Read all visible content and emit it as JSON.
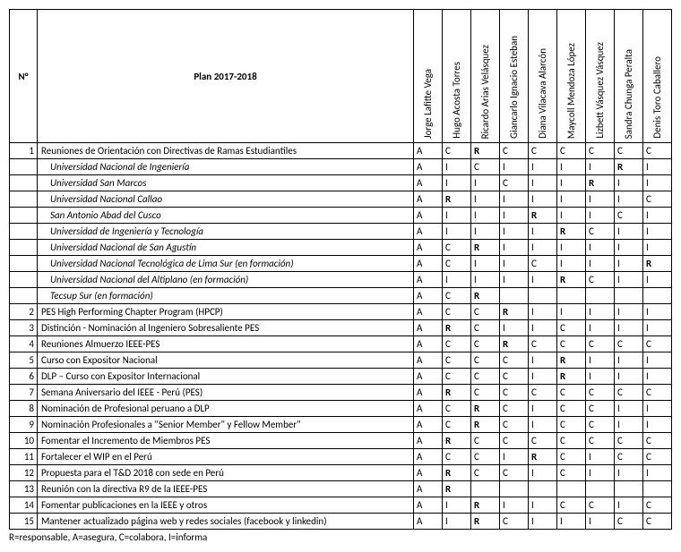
{
  "header": {
    "num_label": "N°",
    "plan_label": "Plan 2017-2018",
    "people": [
      "Jorge Lafitte Vega",
      "Hugo Acosta Torres",
      "Ricardo Arias Velásquez",
      "Giancarlo Ignacio Esteban",
      "Diana Vilacava Alarcón",
      "Maycoll Mendoza López",
      "Lizbett Vásquez Vásquez",
      "Sandra Chunga Peralta",
      "Denis Toro Caballero"
    ]
  },
  "rows": [
    {
      "num": "1",
      "plan": "Reuniones de Orientación con Directivas de Ramas Estudiantiles",
      "indent": false,
      "cells": [
        "A",
        "C",
        "R",
        "C",
        "C",
        "C",
        "C",
        "C",
        "C"
      ],
      "bold": [
        false,
        false,
        true,
        false,
        false,
        false,
        false,
        false,
        false
      ]
    },
    {
      "num": "",
      "plan": "Universidad Nacional de Ingeniería",
      "indent": true,
      "cells": [
        "A",
        "I",
        "C",
        "I",
        "I",
        "I",
        "I",
        "R",
        "I"
      ],
      "bold": [
        false,
        false,
        false,
        false,
        false,
        false,
        false,
        true,
        false
      ]
    },
    {
      "num": "",
      "plan": "Universidad San Marcos",
      "indent": true,
      "cells": [
        "A",
        "I",
        "I",
        "C",
        "I",
        "I",
        "R",
        "I",
        "I"
      ],
      "bold": [
        false,
        false,
        false,
        false,
        false,
        false,
        true,
        false,
        false
      ]
    },
    {
      "num": "",
      "plan": "Universidad Nacional Callao",
      "indent": true,
      "cells": [
        "A",
        "R",
        "I",
        "I",
        "I",
        "I",
        "I",
        "I",
        "C"
      ],
      "bold": [
        false,
        true,
        false,
        false,
        false,
        false,
        false,
        false,
        false
      ]
    },
    {
      "num": "",
      "plan": "San Antonio Abad del Cusco",
      "indent": true,
      "cells": [
        "A",
        "I",
        "I",
        "I",
        "R",
        "I",
        "I",
        "C",
        "I"
      ],
      "bold": [
        false,
        false,
        false,
        false,
        true,
        false,
        false,
        false,
        false
      ]
    },
    {
      "num": "",
      "plan": "Universidad de Ingeniería y Tecnología",
      "indent": true,
      "cells": [
        "A",
        "I",
        "I",
        "I",
        "I",
        "R",
        "C",
        "I",
        "I"
      ],
      "bold": [
        false,
        false,
        false,
        false,
        false,
        true,
        false,
        false,
        false
      ]
    },
    {
      "num": "",
      "plan": "Universidad Nacional de San Agustín",
      "indent": true,
      "cells": [
        "A",
        "C",
        "R",
        "I",
        "I",
        "I",
        "I",
        "I",
        "I"
      ],
      "bold": [
        false,
        false,
        true,
        false,
        false,
        false,
        false,
        false,
        false
      ]
    },
    {
      "num": "",
      "plan": "Universidad Nacional Tecnológica de Lima Sur (en formación)",
      "indent": true,
      "cells": [
        "A",
        "C",
        "I",
        "I",
        "C",
        "I",
        "I",
        "I",
        "R"
      ],
      "bold": [
        false,
        false,
        false,
        false,
        false,
        false,
        false,
        false,
        true
      ]
    },
    {
      "num": "",
      "plan": "Universidad Nacional del Altiplano (en formación)",
      "indent": true,
      "cells": [
        "A",
        "I",
        "I",
        "I",
        "I",
        "R",
        "C",
        "I",
        "I"
      ],
      "bold": [
        false,
        false,
        false,
        false,
        false,
        true,
        false,
        false,
        false
      ]
    },
    {
      "num": "",
      "plan": "Tecsup Sur (en formación)",
      "indent": true,
      "cells": [
        "A",
        "C",
        "R",
        "",
        "",
        "",
        "",
        "",
        ""
      ],
      "bold": [
        false,
        false,
        true,
        false,
        false,
        false,
        false,
        false,
        false
      ]
    },
    {
      "num": "2",
      "plan": "PES High Performing Chapter Program (HPCP)",
      "indent": false,
      "cells": [
        "A",
        "C",
        "C",
        "R",
        "I",
        "I",
        "I",
        "I",
        "I"
      ],
      "bold": [
        false,
        false,
        false,
        true,
        false,
        false,
        false,
        false,
        false
      ]
    },
    {
      "num": "3",
      "plan": "Distinción - Nominación al Ingeniero Sobresaliente PES",
      "indent": false,
      "cells": [
        "A",
        "R",
        "C",
        "I",
        "I",
        "C",
        "I",
        "I",
        "I"
      ],
      "bold": [
        false,
        true,
        false,
        false,
        false,
        false,
        false,
        false,
        false
      ]
    },
    {
      "num": "4",
      "plan": "Reuniones Almuerzo IEEE-PES",
      "indent": false,
      "cells": [
        "A",
        "C",
        "C",
        "R",
        "C",
        "C",
        "C",
        "C",
        "C"
      ],
      "bold": [
        false,
        false,
        false,
        true,
        false,
        false,
        false,
        false,
        false
      ]
    },
    {
      "num": "5",
      "plan": "Curso con Expositor Nacional",
      "indent": false,
      "cells": [
        "A",
        "C",
        "C",
        "C",
        "I",
        "R",
        "I",
        "I",
        "I"
      ],
      "bold": [
        false,
        false,
        false,
        false,
        false,
        true,
        false,
        false,
        false
      ]
    },
    {
      "num": "6",
      "plan": "DLP – Curso con Expositor Internacional",
      "indent": false,
      "cells": [
        "A",
        "C",
        "C",
        "C",
        "I",
        "R",
        "I",
        "I",
        "I"
      ],
      "bold": [
        false,
        false,
        false,
        false,
        false,
        true,
        false,
        false,
        false
      ]
    },
    {
      "num": "7",
      "plan": "Semana Aniversario del IEEE - Perú (PES)",
      "indent": false,
      "cells": [
        "A",
        "R",
        "C",
        "C",
        "C",
        "C",
        "C",
        "C",
        "C"
      ],
      "bold": [
        false,
        true,
        false,
        false,
        false,
        false,
        false,
        false,
        false
      ]
    },
    {
      "num": "8",
      "plan": "Nominación de Profesional peruano a DLP",
      "indent": false,
      "cells": [
        "A",
        "C",
        "R",
        "C",
        "I",
        "C",
        "C",
        "I",
        "I"
      ],
      "bold": [
        false,
        false,
        true,
        false,
        false,
        false,
        false,
        false,
        false
      ]
    },
    {
      "num": "9",
      "plan": "Nominación Profesionales a \"Senior Member\" y Fellow Member\"",
      "indent": false,
      "cells": [
        "A",
        "C",
        "R",
        "C",
        "I",
        "C",
        "C",
        "I",
        "I"
      ],
      "bold": [
        false,
        false,
        true,
        false,
        false,
        false,
        false,
        false,
        false
      ]
    },
    {
      "num": "10",
      "plan": "Fomentar el Incremento de Miembros PES",
      "indent": false,
      "cells": [
        "A",
        "R",
        "C",
        "C",
        "C",
        "C",
        "C",
        "C",
        "C"
      ],
      "bold": [
        false,
        true,
        false,
        false,
        false,
        false,
        false,
        false,
        false
      ]
    },
    {
      "num": "11",
      "plan": "Fortalecer el WIP en el Perú",
      "indent": false,
      "cells": [
        "A",
        "C",
        "C",
        "I",
        "R",
        "C",
        "I",
        "C",
        "C"
      ],
      "bold": [
        false,
        false,
        false,
        false,
        true,
        false,
        false,
        false,
        false
      ]
    },
    {
      "num": "12",
      "plan": "Propuesta para el T&D 2018 con sede en Perú",
      "indent": false,
      "cells": [
        "A",
        "R",
        "C",
        "C",
        "I",
        "C",
        "I",
        "I",
        "I"
      ],
      "bold": [
        false,
        true,
        false,
        false,
        false,
        false,
        false,
        false,
        false
      ]
    },
    {
      "num": "13",
      "plan": "Reunión con la directiva R9 de la IEEE-PES",
      "indent": false,
      "cells": [
        "A",
        "R",
        "",
        "",
        "",
        "",
        "",
        "",
        ""
      ],
      "bold": [
        false,
        true,
        false,
        false,
        false,
        false,
        false,
        false,
        false
      ]
    },
    {
      "num": "14",
      "plan": "Fomentar publicaciones en la IEEE y otros",
      "indent": false,
      "cells": [
        "A",
        "I",
        "R",
        "I",
        "I",
        "C",
        "C",
        "I",
        "C"
      ],
      "bold": [
        false,
        false,
        true,
        false,
        false,
        false,
        false,
        false,
        false
      ]
    },
    {
      "num": "15",
      "plan": "Mantener actualizado página web y redes sociales (facebook y linkedin)",
      "indent": false,
      "cells": [
        "A",
        "I",
        "R",
        "C",
        "I",
        "I",
        "I",
        "C",
        "C"
      ],
      "bold": [
        false,
        false,
        true,
        false,
        false,
        false,
        false,
        false,
        false
      ]
    }
  ],
  "legend": "R=responsable, A=asegura, C=colabora, I=informa"
}
